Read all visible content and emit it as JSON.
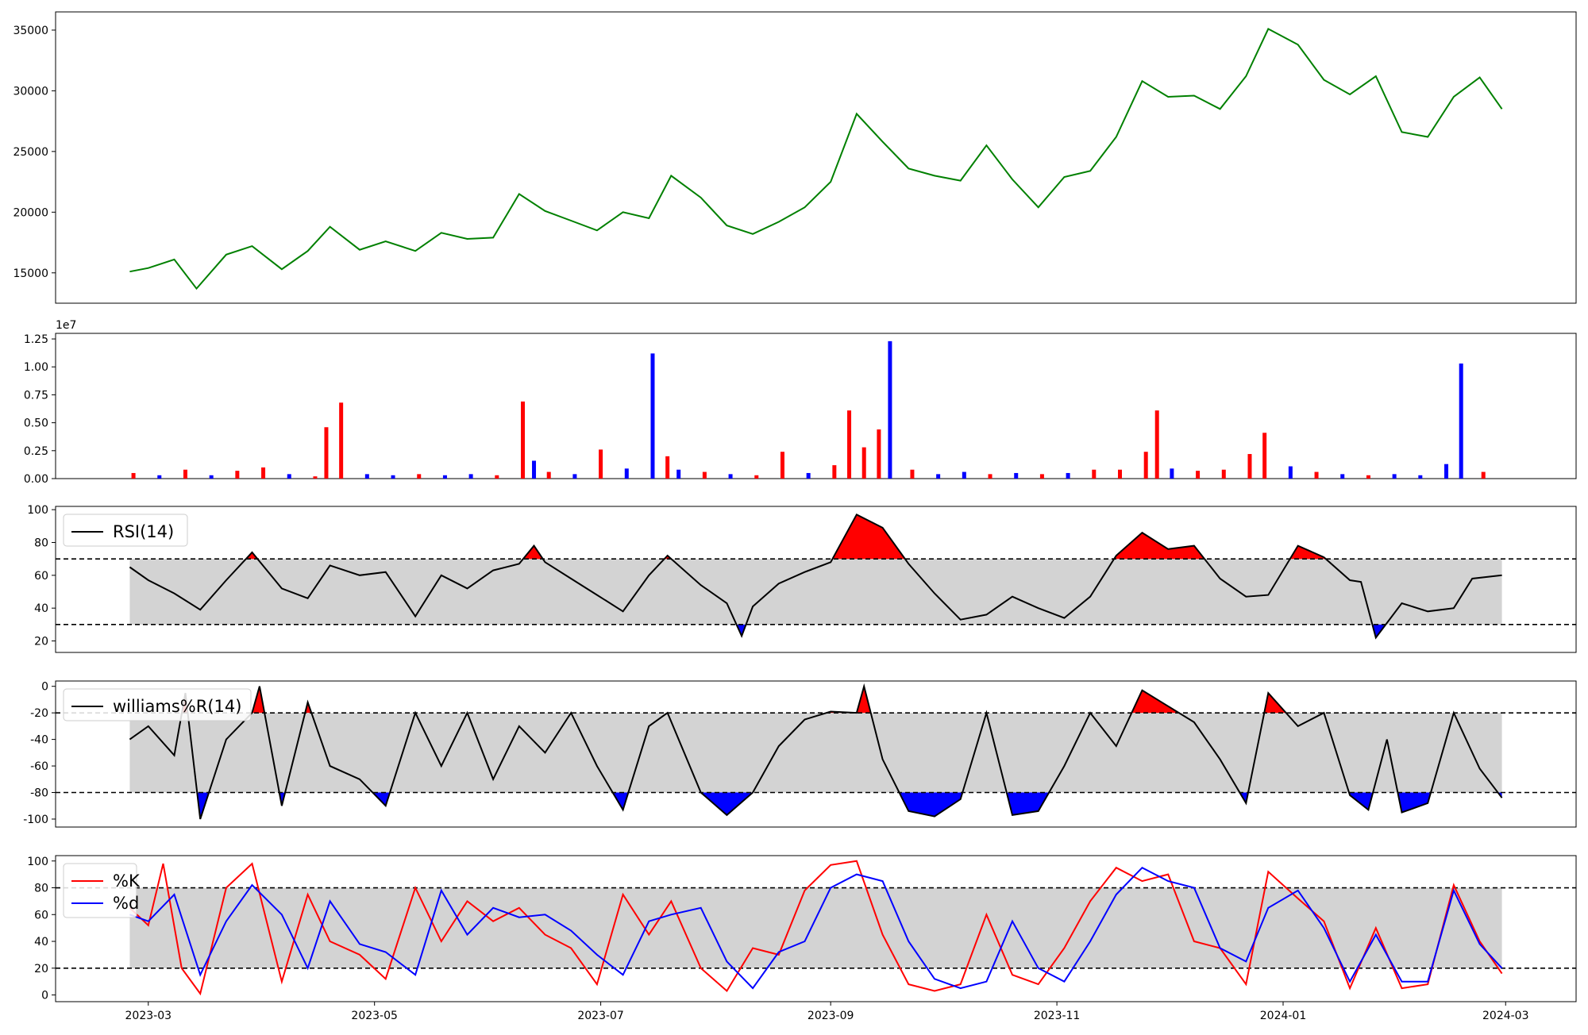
{
  "chart_data": [
    {
      "type": "line",
      "panel": "price",
      "title": "",
      "xlabel": "",
      "ylabel": "",
      "ylim": [
        12500,
        36500
      ],
      "yticks": [
        15000,
        20000,
        25000,
        30000,
        35000
      ],
      "grid": false,
      "series": [
        {
          "color": "#008000",
          "x": [
            "2023-02-24",
            "2023-03-01",
            "2023-03-08",
            "2023-03-14",
            "2023-03-22",
            "2023-03-29",
            "2023-04-06",
            "2023-04-13",
            "2023-04-19",
            "2023-04-27",
            "2023-05-04",
            "2023-05-12",
            "2023-05-19",
            "2023-05-26",
            "2023-06-02",
            "2023-06-09",
            "2023-06-16",
            "2023-06-23",
            "2023-06-30",
            "2023-07-07",
            "2023-07-14",
            "2023-07-20",
            "2023-07-28",
            "2023-08-04",
            "2023-08-11",
            "2023-08-18",
            "2023-08-25",
            "2023-09-01",
            "2023-09-08",
            "2023-09-15",
            "2023-09-22",
            "2023-09-29",
            "2023-10-06",
            "2023-10-13",
            "2023-10-20",
            "2023-10-27",
            "2023-11-03",
            "2023-11-10",
            "2023-11-17",
            "2023-11-24",
            "2023-12-01",
            "2023-12-08",
            "2023-12-15",
            "2023-12-22",
            "2023-12-28",
            "2024-01-05",
            "2024-01-12",
            "2024-01-19",
            "2024-01-26",
            "2024-02-02",
            "2024-02-09",
            "2024-02-16",
            "2024-02-23",
            "2024-02-29"
          ],
          "y": [
            15100,
            15400,
            16100,
            13700,
            16500,
            17200,
            15300,
            16800,
            18800,
            16900,
            17600,
            16800,
            18300,
            17800,
            17900,
            21500,
            20100,
            19300,
            18500,
            20000,
            19500,
            23000,
            21200,
            18900,
            18200,
            19200,
            20400,
            22500,
            28100,
            25800,
            23600,
            23000,
            22600,
            25500,
            22700,
            20400,
            22900,
            23400,
            26200,
            30800,
            29500,
            29600,
            28500,
            31200,
            35100,
            33800,
            30900,
            29700,
            31200,
            26600,
            26200,
            29500,
            31100,
            28500
          ]
        }
      ]
    },
    {
      "type": "bar",
      "panel": "volume",
      "title": "",
      "xlabel": "",
      "ylabel": "",
      "y_scale_label": "1e7",
      "ylim": [
        0,
        13000000
      ],
      "yticks": [
        "0.00",
        "0.25",
        "0.50",
        "0.75",
        "1.00",
        "1.25"
      ],
      "up_color": "#ff0000",
      "down_color": "#0000ff",
      "x": [
        "2023-02-25",
        "2023-03-04",
        "2023-03-11",
        "2023-03-18",
        "2023-03-25",
        "2023-04-01",
        "2023-04-08",
        "2023-04-15",
        "2023-04-18",
        "2023-04-22",
        "2023-04-29",
        "2023-05-06",
        "2023-05-13",
        "2023-05-20",
        "2023-05-27",
        "2023-06-03",
        "2023-06-10",
        "2023-06-13",
        "2023-06-17",
        "2023-06-24",
        "2023-07-01",
        "2023-07-08",
        "2023-07-15",
        "2023-07-19",
        "2023-07-22",
        "2023-07-29",
        "2023-08-05",
        "2023-08-12",
        "2023-08-19",
        "2023-08-26",
        "2023-09-02",
        "2023-09-06",
        "2023-09-10",
        "2023-09-14",
        "2023-09-17",
        "2023-09-23",
        "2023-09-30",
        "2023-10-07",
        "2023-10-14",
        "2023-10-21",
        "2023-10-28",
        "2023-11-04",
        "2023-11-11",
        "2023-11-18",
        "2023-11-25",
        "2023-11-28",
        "2023-12-02",
        "2023-12-09",
        "2023-12-16",
        "2023-12-23",
        "2023-12-27",
        "2024-01-03",
        "2024-01-10",
        "2024-01-17",
        "2024-01-24",
        "2024-01-31",
        "2024-02-07",
        "2024-02-14",
        "2024-02-18",
        "2024-02-24"
      ],
      "values": [
        500000,
        300000,
        800000,
        300000,
        700000,
        1000000,
        400000,
        200000,
        4600000,
        6800000,
        400000,
        300000,
        400000,
        300000,
        400000,
        300000,
        6900000,
        1600000,
        600000,
        400000,
        2600000,
        900000,
        11200000,
        2000000,
        800000,
        600000,
        400000,
        300000,
        2400000,
        500000,
        1200000,
        6100000,
        2800000,
        4400000,
        12300000,
        800000,
        400000,
        600000,
        400000,
        500000,
        400000,
        500000,
        800000,
        800000,
        2400000,
        6100000,
        900000,
        700000,
        800000,
        2200000,
        4100000,
        1100000,
        600000,
        400000,
        300000,
        400000,
        300000,
        1300000,
        10300000,
        600000
      ],
      "directions": [
        "up",
        "down",
        "up",
        "down",
        "up",
        "up",
        "down",
        "up",
        "up",
        "up",
        "down",
        "down",
        "up",
        "down",
        "down",
        "up",
        "up",
        "down",
        "up",
        "down",
        "up",
        "down",
        "down",
        "up",
        "down",
        "up",
        "down",
        "up",
        "up",
        "down",
        "up",
        "up",
        "up",
        "up",
        "down",
        "up",
        "down",
        "down",
        "up",
        "down",
        "up",
        "down",
        "up",
        "up",
        "up",
        "up",
        "down",
        "up",
        "up",
        "up",
        "up",
        "down",
        "up",
        "down",
        "up",
        "down",
        "down",
        "down",
        "down",
        "up"
      ]
    },
    {
      "type": "line",
      "panel": "rsi",
      "title": "",
      "xlabel": "",
      "ylabel": "",
      "ylim": [
        13,
        102
      ],
      "yticks": [
        20,
        40,
        60,
        80,
        100
      ],
      "legend": "top-left",
      "band": [
        30,
        70
      ],
      "upper_line": 70,
      "lower_line": 30,
      "series": [
        {
          "name": "RSI(14)",
          "color": "#000000",
          "x": [
            "2023-02-24",
            "2023-03-01",
            "2023-03-08",
            "2023-03-15",
            "2023-03-22",
            "2023-03-29",
            "2023-04-06",
            "2023-04-13",
            "2023-04-19",
            "2023-04-27",
            "2023-05-04",
            "2023-05-12",
            "2023-05-19",
            "2023-05-26",
            "2023-06-02",
            "2023-06-09",
            "2023-06-13",
            "2023-06-16",
            "2023-06-23",
            "2023-06-30",
            "2023-07-07",
            "2023-07-14",
            "2023-07-19",
            "2023-07-28",
            "2023-08-04",
            "2023-08-08",
            "2023-08-11",
            "2023-08-18",
            "2023-08-25",
            "2023-09-01",
            "2023-09-08",
            "2023-09-15",
            "2023-09-22",
            "2023-09-29",
            "2023-10-06",
            "2023-10-13",
            "2023-10-20",
            "2023-10-27",
            "2023-11-03",
            "2023-11-10",
            "2023-11-17",
            "2023-11-24",
            "2023-12-01",
            "2023-12-08",
            "2023-12-15",
            "2023-12-22",
            "2023-12-28",
            "2024-01-05",
            "2024-01-12",
            "2024-01-19",
            "2024-01-22",
            "2024-01-26",
            "2024-02-02",
            "2024-02-09",
            "2024-02-16",
            "2024-02-21",
            "2024-02-29"
          ],
          "y": [
            65,
            57,
            49,
            39,
            57,
            74,
            52,
            46,
            66,
            60,
            62,
            35,
            60,
            52,
            63,
            67,
            78,
            68,
            58,
            48,
            38,
            60,
            72,
            54,
            43,
            23,
            41,
            55,
            62,
            68,
            97,
            89,
            67,
            49,
            33,
            36,
            47,
            40,
            34,
            47,
            72,
            86,
            76,
            78,
            58,
            47,
            48,
            78,
            71,
            57,
            56,
            22,
            43,
            38,
            40,
            58,
            60
          ]
        }
      ]
    },
    {
      "type": "line",
      "panel": "williams",
      "title": "",
      "xlabel": "",
      "ylabel": "",
      "ylim": [
        -106,
        4
      ],
      "yticks": [
        -100,
        -80,
        -60,
        -40,
        -20,
        0
      ],
      "legend": "top-left",
      "band": [
        -80,
        -20
      ],
      "upper_line": -20,
      "lower_line": -80,
      "series": [
        {
          "name": "williams%R(14)",
          "color": "#000000",
          "x": [
            "2023-02-24",
            "2023-03-01",
            "2023-03-08",
            "2023-03-11",
            "2023-03-15",
            "2023-03-22",
            "2023-03-29",
            "2023-03-31",
            "2023-04-06",
            "2023-04-13",
            "2023-04-19",
            "2023-04-27",
            "2023-05-04",
            "2023-05-12",
            "2023-05-19",
            "2023-05-26",
            "2023-06-02",
            "2023-06-09",
            "2023-06-16",
            "2023-06-23",
            "2023-06-30",
            "2023-07-07",
            "2023-07-14",
            "2023-07-19",
            "2023-07-28",
            "2023-08-04",
            "2023-08-11",
            "2023-08-18",
            "2023-08-25",
            "2023-09-01",
            "2023-09-08",
            "2023-09-10",
            "2023-09-15",
            "2023-09-22",
            "2023-09-29",
            "2023-10-06",
            "2023-10-13",
            "2023-10-20",
            "2023-10-27",
            "2023-11-03",
            "2023-11-10",
            "2023-11-17",
            "2023-11-24",
            "2023-12-01",
            "2023-12-08",
            "2023-12-15",
            "2023-12-22",
            "2023-12-28",
            "2024-01-05",
            "2024-01-12",
            "2024-01-19",
            "2024-01-24",
            "2024-01-29",
            "2024-02-02",
            "2024-02-09",
            "2024-02-16",
            "2024-02-23",
            "2024-02-29"
          ],
          "y": [
            -40,
            -30,
            -52,
            -5,
            -100,
            -40,
            -20,
            0,
            -90,
            -12,
            -60,
            -70,
            -90,
            -20,
            -60,
            -20,
            -70,
            -30,
            -50,
            -20,
            -60,
            -93,
            -30,
            -20,
            -80,
            -97,
            -80,
            -45,
            -25,
            -19,
            -20,
            0,
            -55,
            -94,
            -98,
            -85,
            -20,
            -97,
            -94,
            -60,
            -20,
            -45,
            -3,
            -15,
            -27,
            -55,
            -88,
            -5,
            -30,
            -20,
            -82,
            -93,
            -40,
            -95,
            -88,
            -20,
            -62,
            -84
          ]
        }
      ]
    },
    {
      "type": "line",
      "panel": "stochastic",
      "title": "",
      "xlabel": "",
      "ylabel": "",
      "ylim": [
        -5,
        104
      ],
      "yticks": [
        0,
        20,
        40,
        60,
        80,
        100
      ],
      "legend": "top-left",
      "band": [
        20,
        80
      ],
      "upper_line": 80,
      "lower_line": 20,
      "series": [
        {
          "name": "%K",
          "color": "#ff0000",
          "x": [
            "2023-02-24",
            "2023-03-01",
            "2023-03-05",
            "2023-03-10",
            "2023-03-15",
            "2023-03-22",
            "2023-03-29",
            "2023-04-06",
            "2023-04-13",
            "2023-04-19",
            "2023-04-27",
            "2023-05-04",
            "2023-05-12",
            "2023-05-19",
            "2023-05-26",
            "2023-06-02",
            "2023-06-09",
            "2023-06-16",
            "2023-06-23",
            "2023-06-30",
            "2023-07-07",
            "2023-07-14",
            "2023-07-20",
            "2023-07-28",
            "2023-08-04",
            "2023-08-11",
            "2023-08-18",
            "2023-08-25",
            "2023-09-01",
            "2023-09-08",
            "2023-09-15",
            "2023-09-22",
            "2023-09-29",
            "2023-10-06",
            "2023-10-13",
            "2023-10-20",
            "2023-10-27",
            "2023-11-03",
            "2023-11-10",
            "2023-11-17",
            "2023-11-24",
            "2023-12-01",
            "2023-12-08",
            "2023-12-15",
            "2023-12-22",
            "2023-12-28",
            "2024-01-05",
            "2024-01-12",
            "2024-01-19",
            "2024-01-26",
            "2024-02-02",
            "2024-02-09",
            "2024-02-16",
            "2024-02-23",
            "2024-02-29"
          ],
          "y": [
            65,
            52,
            98,
            20,
            1,
            80,
            98,
            10,
            75,
            40,
            30,
            12,
            80,
            40,
            70,
            55,
            65,
            45,
            35,
            8,
            75,
            45,
            70,
            20,
            3,
            35,
            30,
            78,
            97,
            100,
            45,
            8,
            3,
            8,
            60,
            15,
            8,
            35,
            70,
            95,
            85,
            90,
            40,
            35,
            8,
            92,
            72,
            55,
            5,
            50,
            5,
            8,
            82,
            40,
            16
          ]
        },
        {
          "name": "%d",
          "color": "#0000ff",
          "x": [
            "2023-02-24",
            "2023-03-01",
            "2023-03-08",
            "2023-03-15",
            "2023-03-22",
            "2023-03-29",
            "2023-04-06",
            "2023-04-13",
            "2023-04-19",
            "2023-04-27",
            "2023-05-04",
            "2023-05-12",
            "2023-05-19",
            "2023-05-26",
            "2023-06-02",
            "2023-06-09",
            "2023-06-16",
            "2023-06-23",
            "2023-06-30",
            "2023-07-07",
            "2023-07-14",
            "2023-07-20",
            "2023-07-28",
            "2023-08-04",
            "2023-08-11",
            "2023-08-18",
            "2023-08-25",
            "2023-09-01",
            "2023-09-08",
            "2023-09-15",
            "2023-09-22",
            "2023-09-29",
            "2023-10-06",
            "2023-10-13",
            "2023-10-20",
            "2023-10-27",
            "2023-11-03",
            "2023-11-10",
            "2023-11-17",
            "2023-11-24",
            "2023-12-01",
            "2023-12-08",
            "2023-12-15",
            "2023-12-22",
            "2023-12-28",
            "2024-01-05",
            "2024-01-12",
            "2024-01-19",
            "2024-01-26",
            "2024-02-02",
            "2024-02-09",
            "2024-02-16",
            "2024-02-23",
            "2024-02-29"
          ],
          "y": [
            60,
            55,
            75,
            15,
            55,
            82,
            60,
            20,
            70,
            38,
            32,
            15,
            78,
            45,
            65,
            58,
            60,
            48,
            30,
            15,
            55,
            60,
            65,
            25,
            5,
            32,
            40,
            80,
            90,
            85,
            40,
            12,
            5,
            10,
            55,
            20,
            10,
            40,
            75,
            95,
            85,
            80,
            35,
            25,
            65,
            78,
            50,
            10,
            45,
            10,
            10,
            78,
            38,
            20
          ]
        }
      ]
    }
  ],
  "x_axis": {
    "tick_labels": [
      "2023-03",
      "2023-05",
      "2023-07",
      "2023-09",
      "2023-11",
      "2024-01",
      "2024-03"
    ],
    "tick_dates": [
      "2023-03-01",
      "2023-05-01",
      "2023-07-01",
      "2023-09-01",
      "2023-11-01",
      "2024-01-01",
      "2024-03-01"
    ],
    "xlim": [
      "2023-02-04",
      "2024-03-20"
    ]
  },
  "colors": {
    "band_fill": "#d3d3d3",
    "overbought_fill": "#ff0000",
    "oversold_fill": "#0000ff",
    "threshold_line": "#000000"
  }
}
